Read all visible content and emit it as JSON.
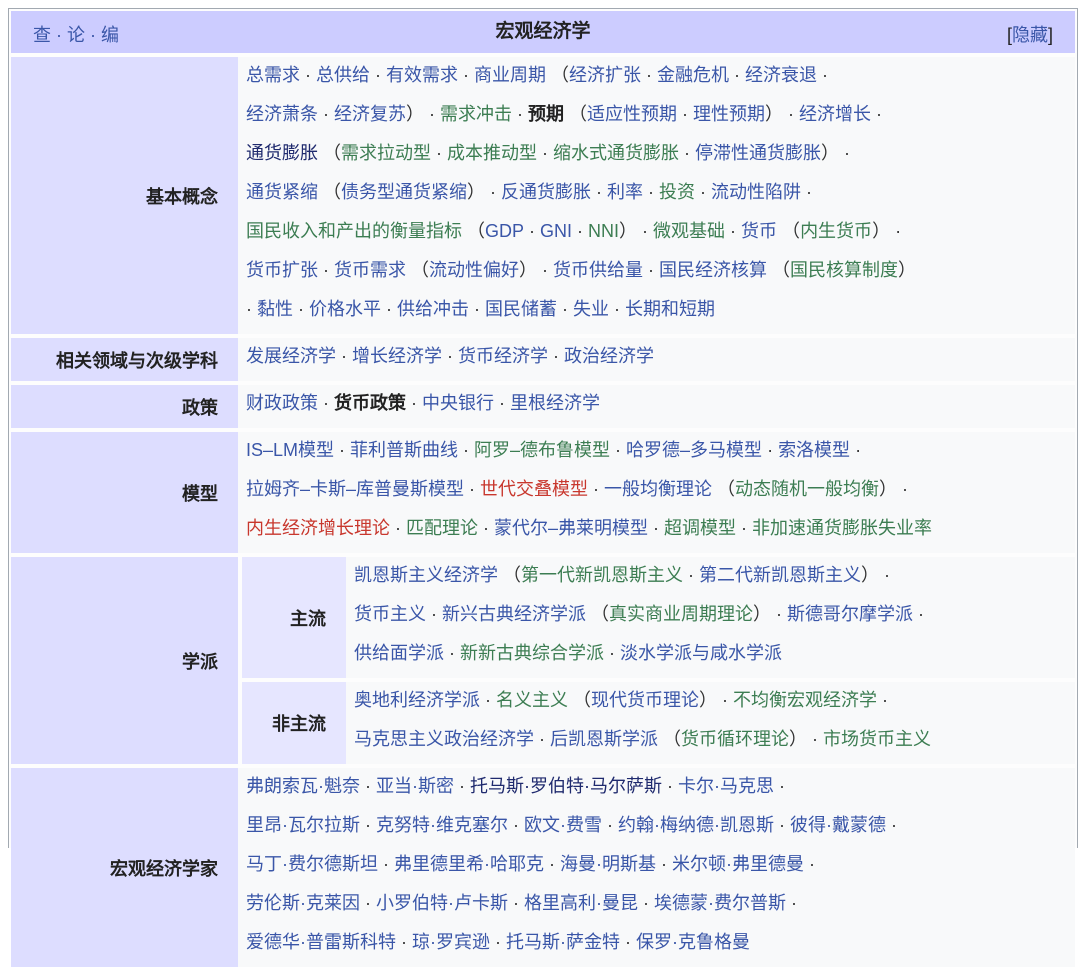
{
  "header": {
    "view": "查",
    "talk": "论",
    "edit": "编",
    "dot": " · ",
    "title": "宏观经济学",
    "hide_open": "[",
    "hide": "隐藏",
    "hide_close": "]"
  },
  "colors": {
    "b": "#3a56a8",
    "g": "#3c7d52",
    "r": "#c8372d",
    "k": "#222222",
    "v": "#1f2a6e",
    "header_bg": "#ccccff",
    "label_bg": "#ddddff"
  },
  "rows": [
    {
      "label": "基本概念",
      "lines": [
        [
          "b:总需求",
          "p: · ",
          "b:总供给",
          "p: · ",
          "b:有效需求",
          "p: · ",
          "b:商业周期",
          "p: （",
          "b:经济扩张",
          "p: · ",
          "b:金融危机",
          "p: · ",
          "b:经济衰退",
          "p: ·"
        ],
        [
          "b:经济萧条",
          "p: · ",
          "b:经济复苏",
          "p:） · ",
          "g:需求冲击",
          "p: · ",
          "k:预期",
          "p: （",
          "b:适应性预期",
          "p: · ",
          "b:理性预期",
          "p:） · ",
          "b:经济增长",
          "p: ·"
        ],
        [
          "v:通货膨胀",
          "p: （",
          "g:需求拉动型",
          "p: · ",
          "g:成本推动型",
          "p: · ",
          "g:缩水式通货膨胀",
          "p: · ",
          "b:停滞性通货膨胀",
          "p:） ·"
        ],
        [
          "b:通货紧缩",
          "p: （",
          "b:债务型通货紧缩",
          "p:） · ",
          "b:反通货膨胀",
          "p: · ",
          "b:利率",
          "p: · ",
          "g:投资",
          "p: · ",
          "b:流动性陷阱",
          "p: ·"
        ],
        [
          "g:国民收入和产出的衡量指标",
          "p: （",
          "b:GDP",
          "p: · ",
          "b:GNI",
          "p: · ",
          "g:NNI",
          "p:） · ",
          "g:微观基础",
          "p: · ",
          "b:货币",
          "p: （",
          "g:内生货币",
          "p:） ·"
        ],
        [
          "b:货币扩张",
          "p: · ",
          "b:货币需求",
          "p: （",
          "b:流动性偏好",
          "p:） · ",
          "b:货币供给量",
          "p: · ",
          "b:国民经济核算",
          "p: （",
          "g:国民核算制度",
          "p:）"
        ],
        [
          "p:· ",
          "b:黏性",
          "p: · ",
          "b:价格水平",
          "p: · ",
          "b:供给冲击",
          "p: · ",
          "b:国民储蓄",
          "p: · ",
          "b:失业",
          "p: · ",
          "b:长期和短期"
        ]
      ]
    },
    {
      "label": "相关领域与次级学科",
      "lines": [
        [
          "b:发展经济学",
          "p: · ",
          "b:增长经济学",
          "p: · ",
          "b:货币经济学",
          "p: · ",
          "b:政治经济学"
        ]
      ]
    },
    {
      "label": "政策",
      "lines": [
        [
          "b:财政政策",
          "p: · ",
          "k:货币政策",
          "p: · ",
          "b:中央银行",
          "p: · ",
          "b:里根经济学"
        ]
      ]
    },
    {
      "label": "模型",
      "lines": [
        [
          "b:IS–LM模型",
          "p: · ",
          "b:菲利普斯曲线",
          "p: · ",
          "g:阿罗–德布鲁模型",
          "p: · ",
          "b:哈罗德–多马模型",
          "p: · ",
          "b:索洛模型",
          "p: ·"
        ],
        [
          "b:拉姆齐–卡斯–库普曼斯模型",
          "p: · ",
          "r:世代交叠模型",
          "p: · ",
          "b:一般均衡理论",
          "p: （",
          "g:动态随机一般均衡",
          "p:） ·"
        ],
        [
          "r:内生经济增长理论",
          "p: · ",
          "g:匹配理论",
          "p: · ",
          "b:蒙代尔–弗莱明模型",
          "p: · ",
          "g:超调模型",
          "p: · ",
          "g:非加速通货膨胀失业率"
        ]
      ]
    }
  ],
  "schools": {
    "label": "学派",
    "groups": [
      {
        "label": "主流",
        "lines": [
          [
            "b:凯恩斯主义经济学",
            "p: （",
            "g:第一代新凯恩斯主义",
            "p: · ",
            "b:第二代新凯恩斯主义",
            "p:） ·"
          ],
          [
            "b:货币主义",
            "p: · ",
            "b:新兴古典经济学派",
            "p: （",
            "g:真实商业周期理论",
            "p:） · ",
            "b:斯德哥尔摩学派",
            "p: ·"
          ],
          [
            "b:供给面学派",
            "p: · ",
            "g:新新古典综合学派",
            "p: · ",
            "b:淡水学派与咸水学派"
          ]
        ]
      },
      {
        "label": "非主流",
        "lines": [
          [
            "b:奥地利经济学派",
            "p: · ",
            "g:名义主义",
            "p: （",
            "b:现代货币理论",
            "p:） · ",
            "g:不均衡宏观经济学",
            "p: ·"
          ],
          [
            "b:马克思主义政治经济学",
            "p: · ",
            "b:后凯恩斯学派",
            "p: （",
            "g:货币循环理论",
            "p:） · ",
            "g:市场货币主义"
          ]
        ]
      }
    ]
  },
  "economists": {
    "label": "宏观经济学家",
    "lines": [
      [
        "b:弗朗索瓦·魁奈",
        "p: · ",
        "b:亚当·斯密",
        "p: · ",
        "v:托马斯·罗伯特·马尔萨斯",
        "p: · ",
        "b:卡尔·马克思",
        "p: ·"
      ],
      [
        "b:里昂·瓦尔拉斯",
        "p: · ",
        "b:克努特·维克塞尔",
        "p: · ",
        "b:欧文·费雪",
        "p: · ",
        "b:约翰·梅纳德·凯恩斯",
        "p: · ",
        "b:彼得·戴蒙德",
        "p: ·"
      ],
      [
        "b:马丁·费尔德斯坦",
        "p: · ",
        "b:弗里德里希·哈耶克",
        "p: · ",
        "b:海曼·明斯基",
        "p: · ",
        "b:米尔顿·弗里德曼",
        "p: ·"
      ],
      [
        "b:劳伦斯·克莱因",
        "p: · ",
        "b:小罗伯特·卢卡斯",
        "p: · ",
        "b:格里高利·曼昆",
        "p: · ",
        "b:埃德蒙·费尔普斯",
        "p: ·"
      ],
      [
        "b:爱德华·普雷斯科特",
        "p: · ",
        "b:琼·罗宾逊",
        "p: · ",
        "b:托马斯·萨金特",
        "p: · ",
        "b:保罗·克鲁格曼"
      ]
    ]
  }
}
